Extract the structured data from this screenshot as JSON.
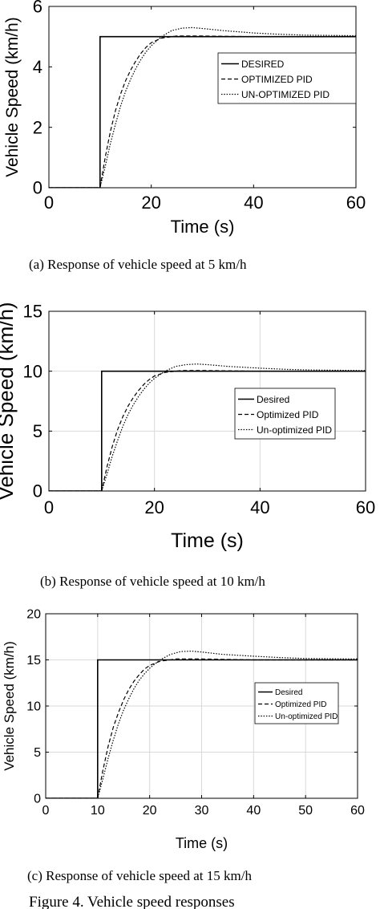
{
  "chart_data": [
    {
      "type": "line",
      "xlabel": "Time (s)",
      "ylabel": "Vehicle Speed (km/h)",
      "xlim": [
        0,
        60
      ],
      "ylim": [
        0,
        6
      ],
      "xticks": [
        0,
        20,
        40,
        60
      ],
      "yticks": [
        0,
        2,
        4,
        6
      ],
      "grid": false,
      "legend": "upper right",
      "caption": "(a)   Response of vehicle speed at 5 km/h",
      "series": [
        {
          "name": "DESIRED",
          "style": "solid",
          "x": [
            0,
            10,
            10,
            60
          ],
          "y": [
            0,
            0,
            5,
            5
          ]
        },
        {
          "name": "OPTIMIZED PID",
          "style": "dashed",
          "x": [
            0,
            10,
            11,
            12,
            13,
            14,
            15,
            16,
            17,
            18,
            19,
            20,
            22,
            25,
            30,
            40,
            50,
            60
          ],
          "y": [
            0,
            0,
            1.0,
            1.85,
            2.55,
            3.1,
            3.55,
            3.9,
            4.2,
            4.45,
            4.65,
            4.8,
            4.95,
            5.02,
            5.02,
            5.0,
            5.0,
            5.0
          ]
        },
        {
          "name": "UN-OPTIMIZED PID",
          "style": "dotted",
          "x": [
            0,
            10,
            11,
            12,
            13,
            14,
            15,
            16,
            17,
            18,
            19,
            20,
            22,
            24,
            26,
            28,
            30,
            34,
            40,
            45,
            50,
            55,
            60
          ],
          "y": [
            0,
            0,
            0.7,
            1.45,
            2.1,
            2.7,
            3.2,
            3.6,
            3.95,
            4.25,
            4.5,
            4.7,
            5.0,
            5.2,
            5.28,
            5.3,
            5.27,
            5.2,
            5.12,
            5.08,
            5.05,
            5.04,
            5.03
          ]
        }
      ]
    },
    {
      "type": "line",
      "xlabel": "Time (s)",
      "ylabel": "Vehicle Speed (km/h)",
      "xlim": [
        0,
        60
      ],
      "ylim": [
        0,
        15
      ],
      "xticks": [
        0,
        20,
        40,
        60
      ],
      "yticks": [
        0,
        5,
        10,
        15
      ],
      "grid": true,
      "legend": "right",
      "caption": "(b)       Response of vehicle speed at 10 km/h",
      "series": [
        {
          "name": "Desired",
          "style": "solid",
          "x": [
            0,
            10,
            10,
            60
          ],
          "y": [
            0,
            0,
            10,
            10
          ]
        },
        {
          "name": "Optimized PID",
          "style": "dashed",
          "x": [
            0,
            10,
            11,
            12,
            13,
            14,
            15,
            16,
            17,
            18,
            19,
            20,
            22,
            25,
            30,
            40,
            50,
            60
          ],
          "y": [
            0,
            0,
            2.0,
            3.7,
            5.1,
            6.2,
            7.1,
            7.8,
            8.4,
            8.9,
            9.3,
            9.6,
            9.9,
            10.05,
            10.05,
            10.0,
            10.0,
            10.0
          ]
        },
        {
          "name": "Un-optimized PID",
          "style": "dotted",
          "x": [
            0,
            10,
            11,
            12,
            13,
            14,
            15,
            16,
            17,
            18,
            19,
            20,
            22,
            24,
            26,
            28,
            30,
            34,
            40,
            45,
            50,
            55,
            60
          ],
          "y": [
            0,
            0,
            1.4,
            2.9,
            4.2,
            5.4,
            6.4,
            7.2,
            7.9,
            8.5,
            9.0,
            9.4,
            10.0,
            10.4,
            10.55,
            10.6,
            10.55,
            10.4,
            10.25,
            10.15,
            10.1,
            10.08,
            10.05
          ]
        }
      ]
    },
    {
      "type": "line",
      "xlabel": "Time (s)",
      "ylabel": "Vehicle Speed (km/h)",
      "xlim": [
        0,
        60
      ],
      "ylim": [
        0,
        20
      ],
      "xticks": [
        0,
        10,
        20,
        30,
        40,
        50,
        60
      ],
      "yticks": [
        0,
        5,
        10,
        15,
        20
      ],
      "grid": true,
      "legend": "right",
      "caption": "(c)  Response of vehicle speed at 15 km/h",
      "series": [
        {
          "name": "Desired",
          "style": "solid",
          "x": [
            0,
            10,
            10,
            60
          ],
          "y": [
            0,
            0,
            15,
            15
          ]
        },
        {
          "name": "Optimized PID",
          "style": "dashed",
          "x": [
            0,
            10,
            11,
            12,
            13,
            14,
            15,
            16,
            17,
            18,
            19,
            20,
            22,
            25,
            30,
            40,
            50,
            60
          ],
          "y": [
            0,
            0,
            3.0,
            5.6,
            7.7,
            9.3,
            10.7,
            11.8,
            12.7,
            13.4,
            14.0,
            14.4,
            14.85,
            15.1,
            15.1,
            15.0,
            15.0,
            15.0
          ]
        },
        {
          "name": "Un-optimized PID",
          "style": "dotted",
          "x": [
            0,
            10,
            11,
            12,
            13,
            14,
            15,
            16,
            17,
            18,
            19,
            20,
            22,
            24,
            26,
            28,
            30,
            34,
            40,
            45,
            50,
            55,
            60
          ],
          "y": [
            0,
            0,
            2.1,
            4.3,
            6.3,
            8.1,
            9.6,
            10.8,
            11.9,
            12.8,
            13.5,
            14.1,
            15.0,
            15.6,
            15.9,
            15.95,
            15.85,
            15.6,
            15.4,
            15.25,
            15.15,
            15.12,
            15.1
          ]
        }
      ]
    }
  ],
  "figure_caption": "Figure 4. Vehicle speed responses"
}
